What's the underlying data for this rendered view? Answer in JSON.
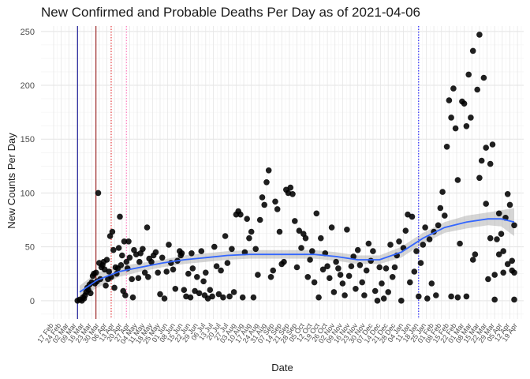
{
  "chart_data": {
    "type": "scatter",
    "title": "New Confirmed and Probable Deaths Per Day as of 2021-04-06",
    "xlabel": "Date",
    "ylabel": "New Counts Per Day",
    "ylim": [
      -17,
      255
    ],
    "yticks": [
      0,
      50,
      100,
      150,
      200,
      250
    ],
    "x_range_days": [
      0,
      424
    ],
    "x_reference_date": "2020-02-17",
    "x_tick_labels": [
      "17 Feb",
      "24 Feb",
      "02 Mar",
      "09 Mar",
      "16 Mar",
      "23 Mar",
      "30 Mar",
      "06 Apr",
      "13 Apr",
      "20 Apr",
      "27 Apr",
      "04 May",
      "11 May",
      "18 May",
      "25 May",
      "01 Jun",
      "08 Jun",
      "15 Jun",
      "22 Jun",
      "29 Jun",
      "06 Jul",
      "13 Jul",
      "20 Jul",
      "27 Jul",
      "03 Aug",
      "10 Aug",
      "17 Aug",
      "24 Aug",
      "31 Aug",
      "07 Sep",
      "14 Sep",
      "21 Sep",
      "28 Sep",
      "05 Oct",
      "12 Oct",
      "19 Oct",
      "26 Oct",
      "02 Nov",
      "09 Nov",
      "16 Nov",
      "23 Nov",
      "30 Nov",
      "07 Dec",
      "14 Dec",
      "21 Dec",
      "28 Dec",
      "04 Jan",
      "11 Jan",
      "18 Jan",
      "25 Jan",
      "01 Feb",
      "08 Feb",
      "15 Feb",
      "22 Feb",
      "01 Mar",
      "08 Mar",
      "15 Mar",
      "22 Mar",
      "29 Mar",
      "05 Apr",
      "12 Apr",
      "19 Apr"
    ],
    "grid": true,
    "vertical_lines": [
      {
        "date": "2020-03-10",
        "color": "#00008b",
        "style": "solid"
      },
      {
        "date": "2020-03-27",
        "color": "#8b0000",
        "style": "solid"
      },
      {
        "date": "2020-04-10",
        "color": "#e41a1c",
        "style": "dotted"
      },
      {
        "date": "2020-04-24",
        "color": "#ff69b4",
        "style": "dotted"
      },
      {
        "date": "2021-01-18",
        "color": "#0000ff",
        "style": "dotted"
      }
    ],
    "points": [
      [
        22,
        0
      ],
      [
        24,
        1
      ],
      [
        26,
        0
      ],
      [
        27,
        3
      ],
      [
        28,
        2
      ],
      [
        29,
        5
      ],
      [
        30,
        8
      ],
      [
        31,
        12
      ],
      [
        32,
        10
      ],
      [
        33,
        15
      ],
      [
        34,
        7
      ],
      [
        35,
        17
      ],
      [
        36,
        23
      ],
      [
        37,
        25
      ],
      [
        38,
        16
      ],
      [
        39,
        26
      ],
      [
        40,
        18
      ],
      [
        41,
        100
      ],
      [
        42,
        35
      ],
      [
        43,
        20
      ],
      [
        44,
        31
      ],
      [
        45,
        33
      ],
      [
        46,
        36
      ],
      [
        47,
        29
      ],
      [
        48,
        14
      ],
      [
        49,
        38
      ],
      [
        50,
        20
      ],
      [
        51,
        27
      ],
      [
        52,
        60
      ],
      [
        53,
        22
      ],
      [
        54,
        64
      ],
      [
        55,
        47
      ],
      [
        56,
        12
      ],
      [
        57,
        31
      ],
      [
        58,
        25
      ],
      [
        59,
        30
      ],
      [
        60,
        49
      ],
      [
        61,
        78
      ],
      [
        62,
        33
      ],
      [
        63,
        42
      ],
      [
        64,
        9
      ],
      [
        65,
        55
      ],
      [
        66,
        5
      ],
      [
        67,
        36
      ],
      [
        68,
        30
      ],
      [
        69,
        55
      ],
      [
        70,
        40
      ],
      [
        72,
        20
      ],
      [
        73,
        3
      ],
      [
        74,
        47
      ],
      [
        76,
        43
      ],
      [
        78,
        21
      ],
      [
        79,
        36
      ],
      [
        80,
        44
      ],
      [
        82,
        48
      ],
      [
        84,
        26
      ],
      [
        86,
        68
      ],
      [
        87,
        22
      ],
      [
        88,
        39
      ],
      [
        90,
        36
      ],
      [
        92,
        42
      ],
      [
        94,
        45
      ],
      [
        96,
        26
      ],
      [
        98,
        6
      ],
      [
        100,
        40
      ],
      [
        102,
        2
      ],
      [
        104,
        27
      ],
      [
        106,
        52
      ],
      [
        108,
        35
      ],
      [
        110,
        29
      ],
      [
        112,
        11
      ],
      [
        114,
        37
      ],
      [
        116,
        46
      ],
      [
        117,
        42
      ],
      [
        118,
        44
      ],
      [
        120,
        10
      ],
      [
        122,
        4
      ],
      [
        124,
        25
      ],
      [
        126,
        3
      ],
      [
        127,
        44
      ],
      [
        128,
        30
      ],
      [
        130,
        9
      ],
      [
        132,
        22
      ],
      [
        134,
        7
      ],
      [
        136,
        46
      ],
      [
        138,
        18
      ],
      [
        139,
        5
      ],
      [
        140,
        26
      ],
      [
        142,
        2
      ],
      [
        144,
        10
      ],
      [
        146,
        4
      ],
      [
        148,
        50
      ],
      [
        150,
        32
      ],
      [
        152,
        6
      ],
      [
        154,
        28
      ],
      [
        156,
        3
      ],
      [
        158,
        60
      ],
      [
        160,
        35
      ],
      [
        162,
        4
      ],
      [
        164,
        48
      ],
      [
        166,
        8
      ],
      [
        168,
        80
      ],
      [
        170,
        83
      ],
      [
        172,
        80
      ],
      [
        174,
        3
      ],
      [
        176,
        45
      ],
      [
        178,
        76
      ],
      [
        180,
        58
      ],
      [
        182,
        64
      ],
      [
        184,
        3
      ],
      [
        186,
        48
      ],
      [
        188,
        24
      ],
      [
        190,
        75
      ],
      [
        192,
        96
      ],
      [
        194,
        89
      ],
      [
        196,
        110
      ],
      [
        198,
        121
      ],
      [
        200,
        22
      ],
      [
        202,
        28
      ],
      [
        204,
        92
      ],
      [
        206,
        85
      ],
      [
        208,
        64
      ],
      [
        210,
        34
      ],
      [
        212,
        36
      ],
      [
        214,
        103
      ],
      [
        216,
        100
      ],
      [
        218,
        105
      ],
      [
        220,
        99
      ],
      [
        222,
        74
      ],
      [
        224,
        31
      ],
      [
        226,
        65
      ],
      [
        228,
        49
      ],
      [
        230,
        62
      ],
      [
        232,
        58
      ],
      [
        234,
        22
      ],
      [
        236,
        38
      ],
      [
        238,
        46
      ],
      [
        240,
        17
      ],
      [
        242,
        81
      ],
      [
        244,
        3
      ],
      [
        246,
        58
      ],
      [
        248,
        29
      ],
      [
        250,
        44
      ],
      [
        252,
        32
      ],
      [
        254,
        21
      ],
      [
        256,
        68
      ],
      [
        258,
        8
      ],
      [
        260,
        36
      ],
      [
        262,
        30
      ],
      [
        264,
        24
      ],
      [
        266,
        16
      ],
      [
        268,
        5
      ],
      [
        270,
        66
      ],
      [
        272,
        23
      ],
      [
        274,
        32
      ],
      [
        276,
        41
      ],
      [
        278,
        11
      ],
      [
        280,
        47
      ],
      [
        282,
        33
      ],
      [
        284,
        17
      ],
      [
        286,
        5
      ],
      [
        288,
        28
      ],
      [
        290,
        53
      ],
      [
        292,
        37
      ],
      [
        294,
        46
      ],
      [
        296,
        9
      ],
      [
        298,
        0
      ],
      [
        300,
        31
      ],
      [
        302,
        16
      ],
      [
        304,
        2
      ],
      [
        306,
        30
      ],
      [
        308,
        8
      ],
      [
        310,
        52
      ],
      [
        312,
        22
      ],
      [
        314,
        31
      ],
      [
        316,
        42
      ],
      [
        318,
        55
      ],
      [
        320,
        0
      ],
      [
        322,
        49
      ],
      [
        324,
        65
      ],
      [
        326,
        80
      ],
      [
        328,
        17
      ],
      [
        330,
        78
      ],
      [
        332,
        27
      ],
      [
        334,
        46
      ],
      [
        336,
        4
      ],
      [
        338,
        35
      ],
      [
        340,
        52
      ],
      [
        342,
        68
      ],
      [
        344,
        2
      ],
      [
        346,
        57
      ],
      [
        348,
        16
      ],
      [
        350,
        64
      ],
      [
        352,
        5
      ],
      [
        354,
        70
      ],
      [
        356,
        86
      ],
      [
        358,
        101
      ],
      [
        360,
        79
      ],
      [
        362,
        143
      ],
      [
        364,
        186
      ],
      [
        366,
        170
      ],
      [
        368,
        197
      ],
      [
        370,
        160
      ],
      [
        372,
        112
      ],
      [
        374,
        53
      ],
      [
        376,
        185
      ],
      [
        378,
        183
      ],
      [
        380,
        162
      ],
      [
        382,
        210
      ],
      [
        384,
        170
      ],
      [
        386,
        232
      ],
      [
        388,
        43
      ],
      [
        390,
        196
      ],
      [
        392,
        247
      ],
      [
        394,
        130
      ],
      [
        396,
        207
      ],
      [
        398,
        90
      ],
      [
        400,
        20
      ],
      [
        402,
        127
      ],
      [
        404,
        145
      ],
      [
        406,
        1
      ],
      [
        408,
        57
      ],
      [
        410,
        81
      ],
      [
        412,
        62
      ],
      [
        414,
        26
      ],
      [
        416,
        77
      ],
      [
        418,
        99
      ],
      [
        420,
        89
      ],
      [
        422,
        37
      ],
      [
        424,
        70
      ],
      [
        366,
        4
      ],
      [
        372,
        3
      ],
      [
        380,
        4
      ],
      [
        386,
        38
      ],
      [
        392,
        114
      ],
      [
        398,
        142
      ],
      [
        402,
        58
      ],
      [
        406,
        24
      ],
      [
        410,
        43
      ],
      [
        414,
        46
      ],
      [
        418,
        34
      ],
      [
        422,
        28
      ],
      [
        424,
        26
      ],
      [
        424,
        1
      ]
    ],
    "smooth": [
      [
        24,
        8
      ],
      [
        40,
        19
      ],
      [
        60,
        27
      ],
      [
        80,
        31
      ],
      [
        100,
        35
      ],
      [
        120,
        38
      ],
      [
        140,
        40
      ],
      [
        160,
        42
      ],
      [
        180,
        43
      ],
      [
        200,
        43
      ],
      [
        220,
        43
      ],
      [
        240,
        43
      ],
      [
        260,
        41
      ],
      [
        280,
        38
      ],
      [
        300,
        38
      ],
      [
        320,
        45
      ],
      [
        340,
        58
      ],
      [
        360,
        68
      ],
      [
        380,
        73
      ],
      [
        400,
        76
      ],
      [
        412,
        76
      ],
      [
        424,
        73
      ]
    ],
    "smooth_band": [
      [
        24,
        2,
        14
      ],
      [
        40,
        12,
        26
      ],
      [
        60,
        22,
        32
      ],
      [
        80,
        27,
        35
      ],
      [
        100,
        31,
        38
      ],
      [
        120,
        34,
        42
      ],
      [
        140,
        36,
        44
      ],
      [
        160,
        38,
        46
      ],
      [
        180,
        39,
        47
      ],
      [
        200,
        39,
        47
      ],
      [
        220,
        39,
        47
      ],
      [
        240,
        39,
        47
      ],
      [
        260,
        37,
        45
      ],
      [
        280,
        34,
        42
      ],
      [
        300,
        34,
        42
      ],
      [
        320,
        40,
        50
      ],
      [
        340,
        53,
        63
      ],
      [
        360,
        63,
        73
      ],
      [
        380,
        67,
        79
      ],
      [
        400,
        70,
        82
      ],
      [
        412,
        69,
        84
      ],
      [
        424,
        60,
        86
      ]
    ]
  }
}
